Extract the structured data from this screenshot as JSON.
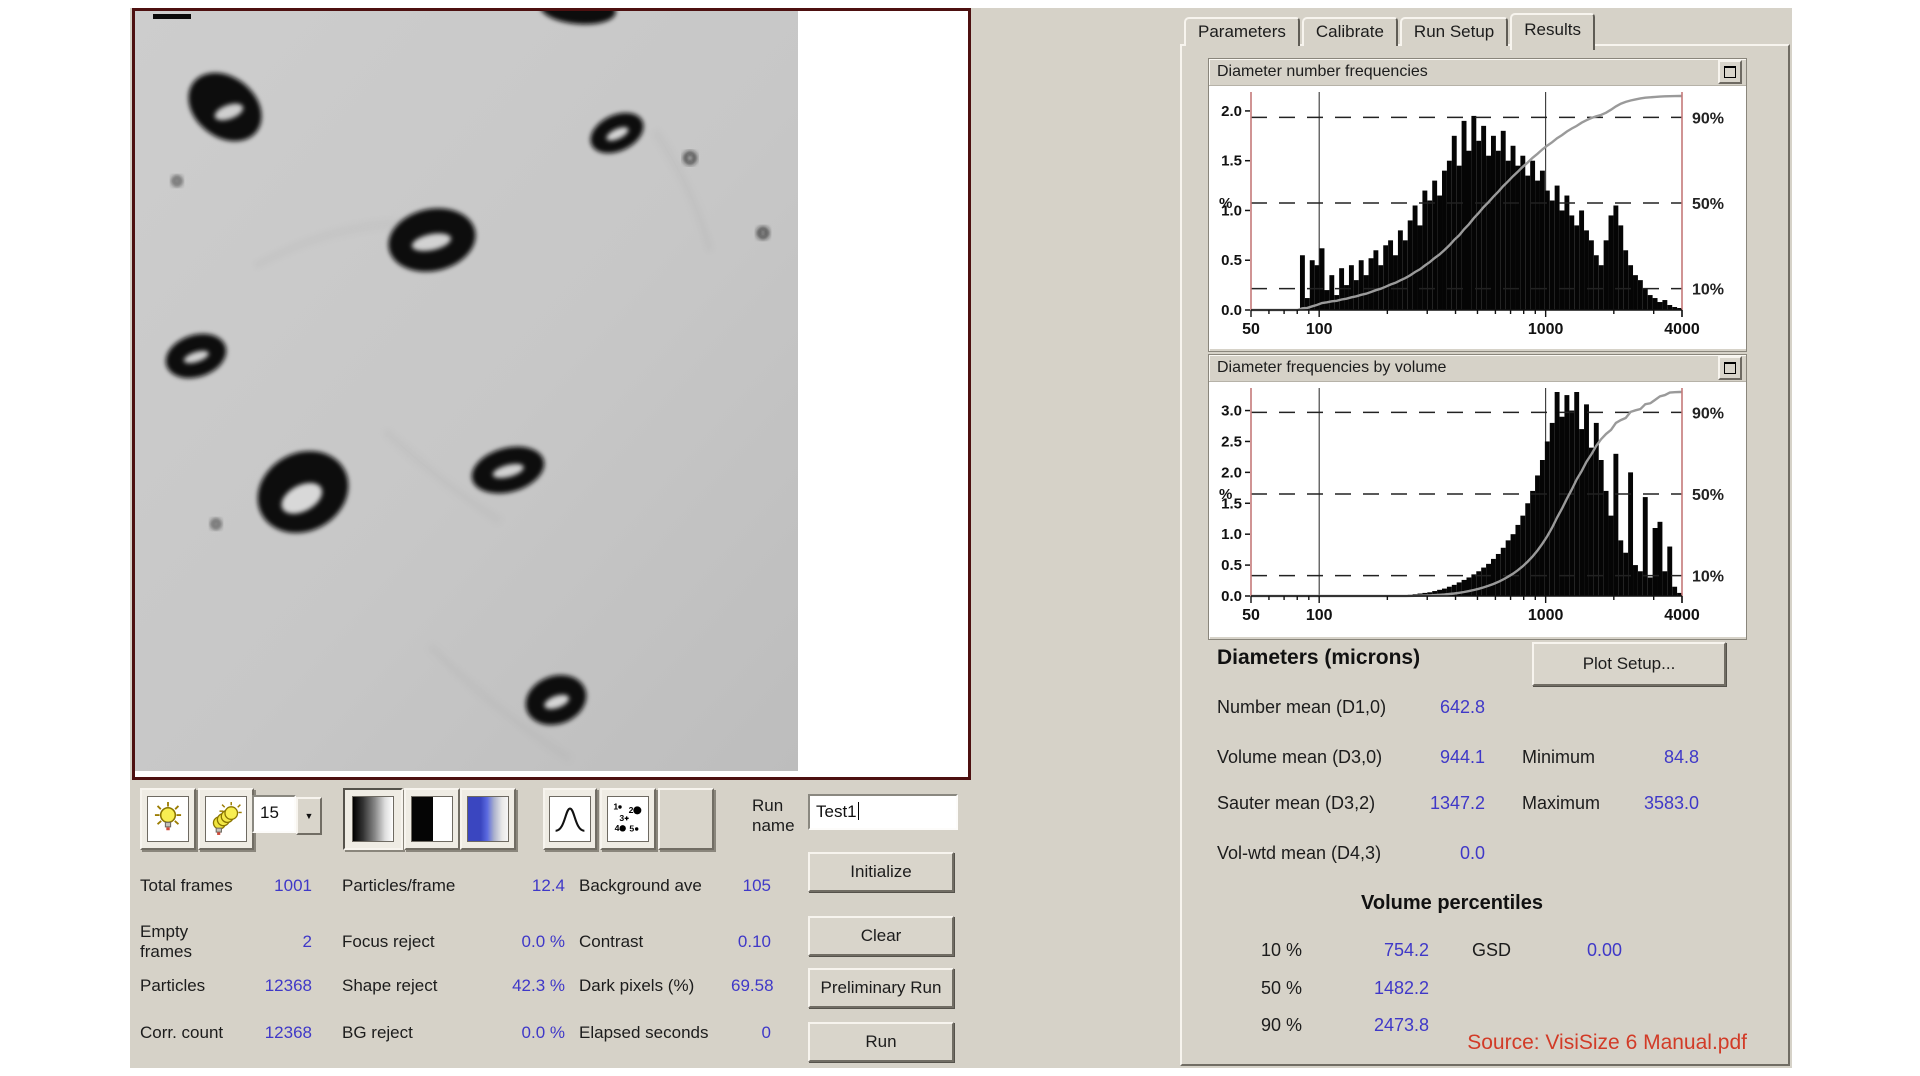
{
  "tabs": [
    {
      "label": "Parameters",
      "active": false
    },
    {
      "label": "Calibrate",
      "active": false
    },
    {
      "label": "Run Setup",
      "active": false
    },
    {
      "label": "Results",
      "active": true
    }
  ],
  "toolbar": {
    "light_button_icon": "light-bulb",
    "multi_light_button_icon": "light-bulb-stack",
    "zoom_value": "15",
    "zoom_dropdown_arrow": "▼",
    "gradient_button_icon": "grayscale-gradient",
    "threshold_button_icon": "black-white-threshold",
    "colormap_button_icon": "blue-gradient",
    "distribution_button_icon": "bell-curve",
    "particle_id_button_icon": "numbered-particles",
    "particle_icon_numbers": [
      "1",
      "2",
      "3",
      "4",
      "5"
    ],
    "run_name_label": "Run name",
    "run_name_value": "Test1"
  },
  "actions": [
    {
      "label": "Initialize"
    },
    {
      "label": "Clear"
    },
    {
      "label": "Preliminary Run"
    },
    {
      "label": "Run"
    }
  ],
  "stats": {
    "rows": [
      [
        {
          "label": "Total frames",
          "value": "1001"
        },
        {
          "label": "Particles/frame",
          "value": "12.4"
        },
        {
          "label": "Background ave",
          "value": "105"
        }
      ],
      [
        {
          "label": "Empty frames",
          "value": "2"
        },
        {
          "label": "Focus reject",
          "value": "0.0 %"
        },
        {
          "label": "Contrast",
          "value": "0.10"
        }
      ],
      [
        {
          "label": "Particles",
          "value": "12368"
        },
        {
          "label": "Shape reject",
          "value": "42.3 %"
        },
        {
          "label": "Dark pixels (%)",
          "value": "69.58"
        }
      ],
      [
        {
          "label": "Corr. count",
          "value": "12368"
        },
        {
          "label": "BG reject",
          "value": "0.0 %"
        },
        {
          "label": "Elapsed seconds",
          "value": "0"
        }
      ]
    ]
  },
  "results": {
    "heading": "Diameters (microns)",
    "plot_setup_label": "Plot Setup...",
    "means": [
      {
        "label": "Number mean (D1,0)",
        "value": "642.8"
      },
      {
        "label": "Volume mean (D3,0)",
        "value": "944.1"
      },
      {
        "label": "Sauter mean  (D3,2)",
        "value": "1347.2"
      },
      {
        "label": "Vol-wtd mean (D4,3)",
        "value": "0.0"
      }
    ],
    "extremes": [
      {
        "label": "Minimum",
        "value": "84.8"
      },
      {
        "label": "Maximum",
        "value": "3583.0"
      }
    ],
    "vp_heading": "Volume percentiles",
    "percentiles": [
      {
        "label": "10 %",
        "value": "754.2"
      },
      {
        "label": "50 %",
        "value": "1482.2"
      },
      {
        "label": "90 %",
        "value": "2473.8"
      }
    ],
    "gsd": {
      "label": "GSD",
      "value": "0.00"
    }
  },
  "source_note": "Source: VisiSize 6 Manual.pdf",
  "colors": {
    "window_bg": "#d6d2c8",
    "value_blue": "#3f38c8",
    "source_red": "#d23b27",
    "image_frame": "#4d1010",
    "chart_spine_red": "#c47a7a",
    "cumulative_gray": "#9a9a9a"
  },
  "chart_data": [
    {
      "type": "bar",
      "title": "Diameter number frequencies",
      "xlabel": "",
      "ylabel": "%",
      "x_scale": "log",
      "xlim": [
        50,
        4000
      ],
      "x_tick_labels": [
        50,
        100,
        1000,
        4000
      ],
      "ylim": [
        0,
        2.15
      ],
      "yticks": [
        0.0,
        0.5,
        1.0,
        1.5,
        2.0
      ],
      "right_axis": {
        "ticks": [
          90,
          50,
          10
        ],
        "range": [
          0,
          100
        ],
        "suffix": "%"
      },
      "grid_x": [
        100,
        1000
      ],
      "grid": "dashed-horizontal-at-right-ticks",
      "legend": "none",
      "overlay": "cumulative-percent-curve",
      "values": [
        0,
        0,
        0,
        0,
        0,
        0,
        0,
        0,
        0,
        0,
        0.55,
        0.12,
        0.5,
        0.45,
        0.62,
        0.2,
        0.35,
        0.15,
        0.42,
        0.25,
        0.45,
        0.3,
        0.5,
        0.35,
        0.52,
        0.6,
        0.45,
        0.65,
        0.7,
        0.55,
        0.8,
        0.7,
        0.9,
        1.05,
        0.85,
        1.2,
        1.1,
        1.3,
        1.15,
        1.4,
        1.5,
        1.75,
        1.45,
        1.9,
        1.6,
        1.95,
        1.7,
        1.85,
        1.55,
        1.75,
        1.6,
        1.8,
        1.5,
        1.65,
        1.45,
        1.55,
        1.35,
        1.5,
        1.3,
        1.4,
        1.2,
        1.1,
        1.25,
        1.0,
        1.15,
        0.95,
        0.85,
        1.0,
        0.8,
        0.7,
        0.55,
        0.45,
        0.7,
        0.95,
        1.05,
        0.85,
        0.6,
        0.45,
        0.35,
        0.3,
        0.22,
        0.15,
        0.12,
        0.08,
        0.1,
        0.05,
        0.03,
        0.02
      ]
    },
    {
      "type": "bar",
      "title": "Diameter frequencies by volume",
      "xlabel": "",
      "ylabel": "%",
      "x_scale": "log",
      "xlim": [
        50,
        4000
      ],
      "x_tick_labels": [
        50,
        100,
        1000,
        4000
      ],
      "ylim": [
        0,
        3.3
      ],
      "yticks": [
        0.0,
        0.5,
        1.0,
        1.5,
        2.0,
        2.5,
        3.0
      ],
      "right_axis": {
        "ticks": [
          90,
          50,
          10
        ],
        "range": [
          0,
          100
        ],
        "suffix": "%"
      },
      "grid_x": [
        100,
        1000
      ],
      "grid": "dashed-horizontal-at-right-ticks",
      "legend": "none",
      "overlay": "cumulative-percent-curve",
      "values": [
        0,
        0,
        0,
        0,
        0,
        0,
        0,
        0,
        0,
        0,
        0,
        0,
        0,
        0,
        0,
        0,
        0,
        0,
        0,
        0,
        0,
        0,
        0,
        0,
        0,
        0,
        0,
        0,
        0,
        0,
        0,
        0,
        0.02,
        0.03,
        0.04,
        0.05,
        0.06,
        0.08,
        0.1,
        0.12,
        0.15,
        0.18,
        0.22,
        0.26,
        0.3,
        0.35,
        0.4,
        0.46,
        0.52,
        0.6,
        0.68,
        0.78,
        0.9,
        1.0,
        1.15,
        1.3,
        1.5,
        1.7,
        1.95,
        2.2,
        2.5,
        2.8,
        3.3,
        2.9,
        3.25,
        3.0,
        3.3,
        2.7,
        3.1,
        2.4,
        2.8,
        2.2,
        1.7,
        1.3,
        2.3,
        0.9,
        0.7,
        2.0,
        0.5,
        0.4,
        1.6,
        0.3,
        1.1,
        1.2,
        0.4,
        0.8,
        0.15,
        0.05
      ]
    }
  ]
}
